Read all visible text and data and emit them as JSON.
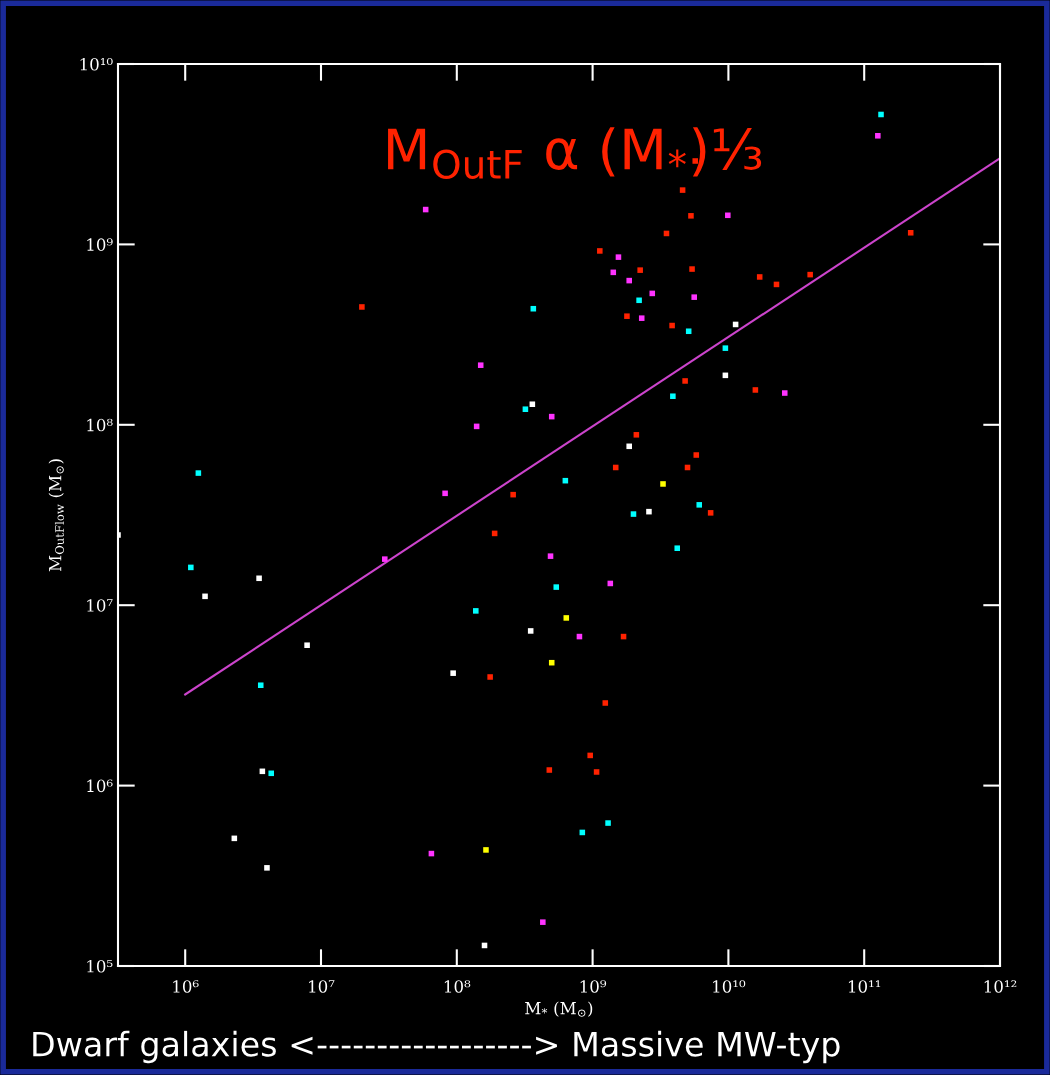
{
  "chart_data": {
    "type": "scatter",
    "title": "M$_{OutF}$ α (M$_{*}$)⅓",
    "xlabel": "M$_{*}$ (M$_{⊙}$)",
    "ylabel": "M$_{OutFlow}$ (M$_{⊙}$)",
    "annotations": [
      "Dwarf galaxies <------------------> Massive MW-typ"
    ],
    "log": "xy",
    "marker": "square",
    "grid": false,
    "legend": false,
    "xlim": [
      320000.0,
      1000000000000.0
    ],
    "ylim": [
      100000.0,
      10000000000.0
    ],
    "xticks": [
      {
        "value": 1000000.0,
        "label": "10⁶"
      },
      {
        "value": 10000000.0,
        "label": "10⁷"
      },
      {
        "value": 100000000.0,
        "label": "10⁸"
      },
      {
        "value": 1000000000.0,
        "label": "10⁹"
      },
      {
        "value": 10000000000.0,
        "label": "10¹⁰"
      },
      {
        "value": 100000000000.0,
        "label": "10¹¹"
      },
      {
        "value": 1000000000000.0,
        "label": "10¹²"
      }
    ],
    "yticks": [
      {
        "value": 100000.0,
        "label": "10⁵"
      },
      {
        "value": 1000000.0,
        "label": "10⁶"
      },
      {
        "value": 10000000.0,
        "label": "10⁷"
      },
      {
        "value": 100000000.0,
        "label": "10⁸"
      },
      {
        "value": 1000000000.0,
        "label": "10⁹"
      },
      {
        "value": 10000000000.0,
        "label": "10¹⁰"
      }
    ],
    "series": [
      {
        "color": "#ffffff",
        "x": [
          320000.0,
          3500000.0,
          1400000.0,
          7900000.0,
          94000000.0,
          3700000.0,
          2300000.0,
          4000000.0,
          160000000.0,
          350000000.0,
          360000000.0,
          1860000000.0,
          2600000000.0,
          9500000000.0,
          11300000000.0
        ],
        "values": [
          24500000.0,
          14100000.0,
          11200000.0,
          6000000.0,
          4200000.0,
          1200000.0,
          510000.0,
          350000.0,
          130000.0,
          7200000.0,
          130000000.0,
          76000000.0,
          33000000.0,
          188000000.0,
          360000000.0
        ]
      },
      {
        "color": "#00ffff",
        "x": [
          1250000.0,
          1100000.0,
          3600000.0,
          4300000.0,
          138000000.0,
          366000000.0,
          320000000.0,
          630000000.0,
          540000000.0,
          840000000.0,
          1300000000.0,
          2000000000.0,
          2200000000.0,
          3900000000.0,
          5100000000.0,
          4200000000.0,
          6100000000.0,
          9500000000.0,
          133000000000.0
        ],
        "values": [
          54000000.0,
          16200000.0,
          3600000.0,
          1170000.0,
          9300000.0,
          440000000.0,
          122000000.0,
          49000000.0,
          12600000.0,
          550000.0,
          620000.0,
          32000000.0,
          490000000.0,
          144000000.0,
          330000000.0,
          20700000.0,
          36000000.0,
          266000000.0,
          5250000000.0
        ]
      },
      {
        "color": "#ff33ff",
        "x": [
          59000000.0,
          150000000.0,
          140000000.0,
          82000000.0,
          29500000.0,
          500000000.0,
          490000000.0,
          800000000.0,
          1350000000.0,
          65000000.0,
          430000000.0,
          1550000000.0,
          1420000000.0,
          1860000000.0,
          2750000000.0,
          2300000000.0,
          5600000000.0,
          9900000000.0,
          26000000000.0,
          126000000000.0
        ],
        "values": [
          1560000000.0,
          214000000.0,
          98000000.0,
          41700000.0,
          18000000.0,
          111000000.0,
          18700000.0,
          6700000.0,
          13200000.0,
          420000.0,
          175000.0,
          850000000.0,
          700000000.0,
          630000000.0,
          535000000.0,
          390000000.0,
          510000000.0,
          1450000000.0,
          150000000.0,
          4000000000.0
        ]
      },
      {
        "color": "#ffff00",
        "x": [
          3300000000.0,
          640000000.0,
          500000000.0,
          164000000.0
        ],
        "values": [
          47000000.0,
          8500000.0,
          4800000.0,
          440000.0
        ]
      },
      {
        "color": "#ff2200",
        "x": [
          20000000.0,
          260000000.0,
          190000000.0,
          176000000.0,
          480000000.0,
          1240000000.0,
          960000000.0,
          1070000000.0,
          1690000000.0,
          1480000000.0,
          2100000000.0,
          5000000000.0,
          5800000000.0,
          7400000000.0,
          1130000000.0,
          2240000000.0,
          1790000000.0,
          3850000000.0,
          3500000000.0,
          5300000000.0,
          4600000000.0,
          5700000000.0,
          5400000000.0,
          17000000000.0,
          22600000000.0,
          40000000000.0,
          4800000000.0,
          15800000000.0,
          220000000000.0
        ],
        "values": [
          450000000.0,
          41000000.0,
          25000000.0,
          4000000.0,
          1220000.0,
          2870000.0,
          1470000.0,
          1190000.0,
          6700000.0,
          58000000.0,
          88000000.0,
          58000000.0,
          68000000.0,
          32500000.0,
          920000000.0,
          720000000.0,
          400000000.0,
          355000000.0,
          1150000000.0,
          1440000000.0,
          2000000000.0,
          2900000000.0,
          730000000.0,
          660000000.0,
          600000000.0,
          680000000.0,
          175000000.0,
          156000000.0,
          1160000000.0
        ]
      },
      {
        "type": "line",
        "color": "#cc44cc",
        "marker": "none",
        "x": [
          1000000.0,
          1000000000000.0
        ],
        "values": [
          3200000.0,
          3000000000.0
        ]
      }
    ]
  }
}
